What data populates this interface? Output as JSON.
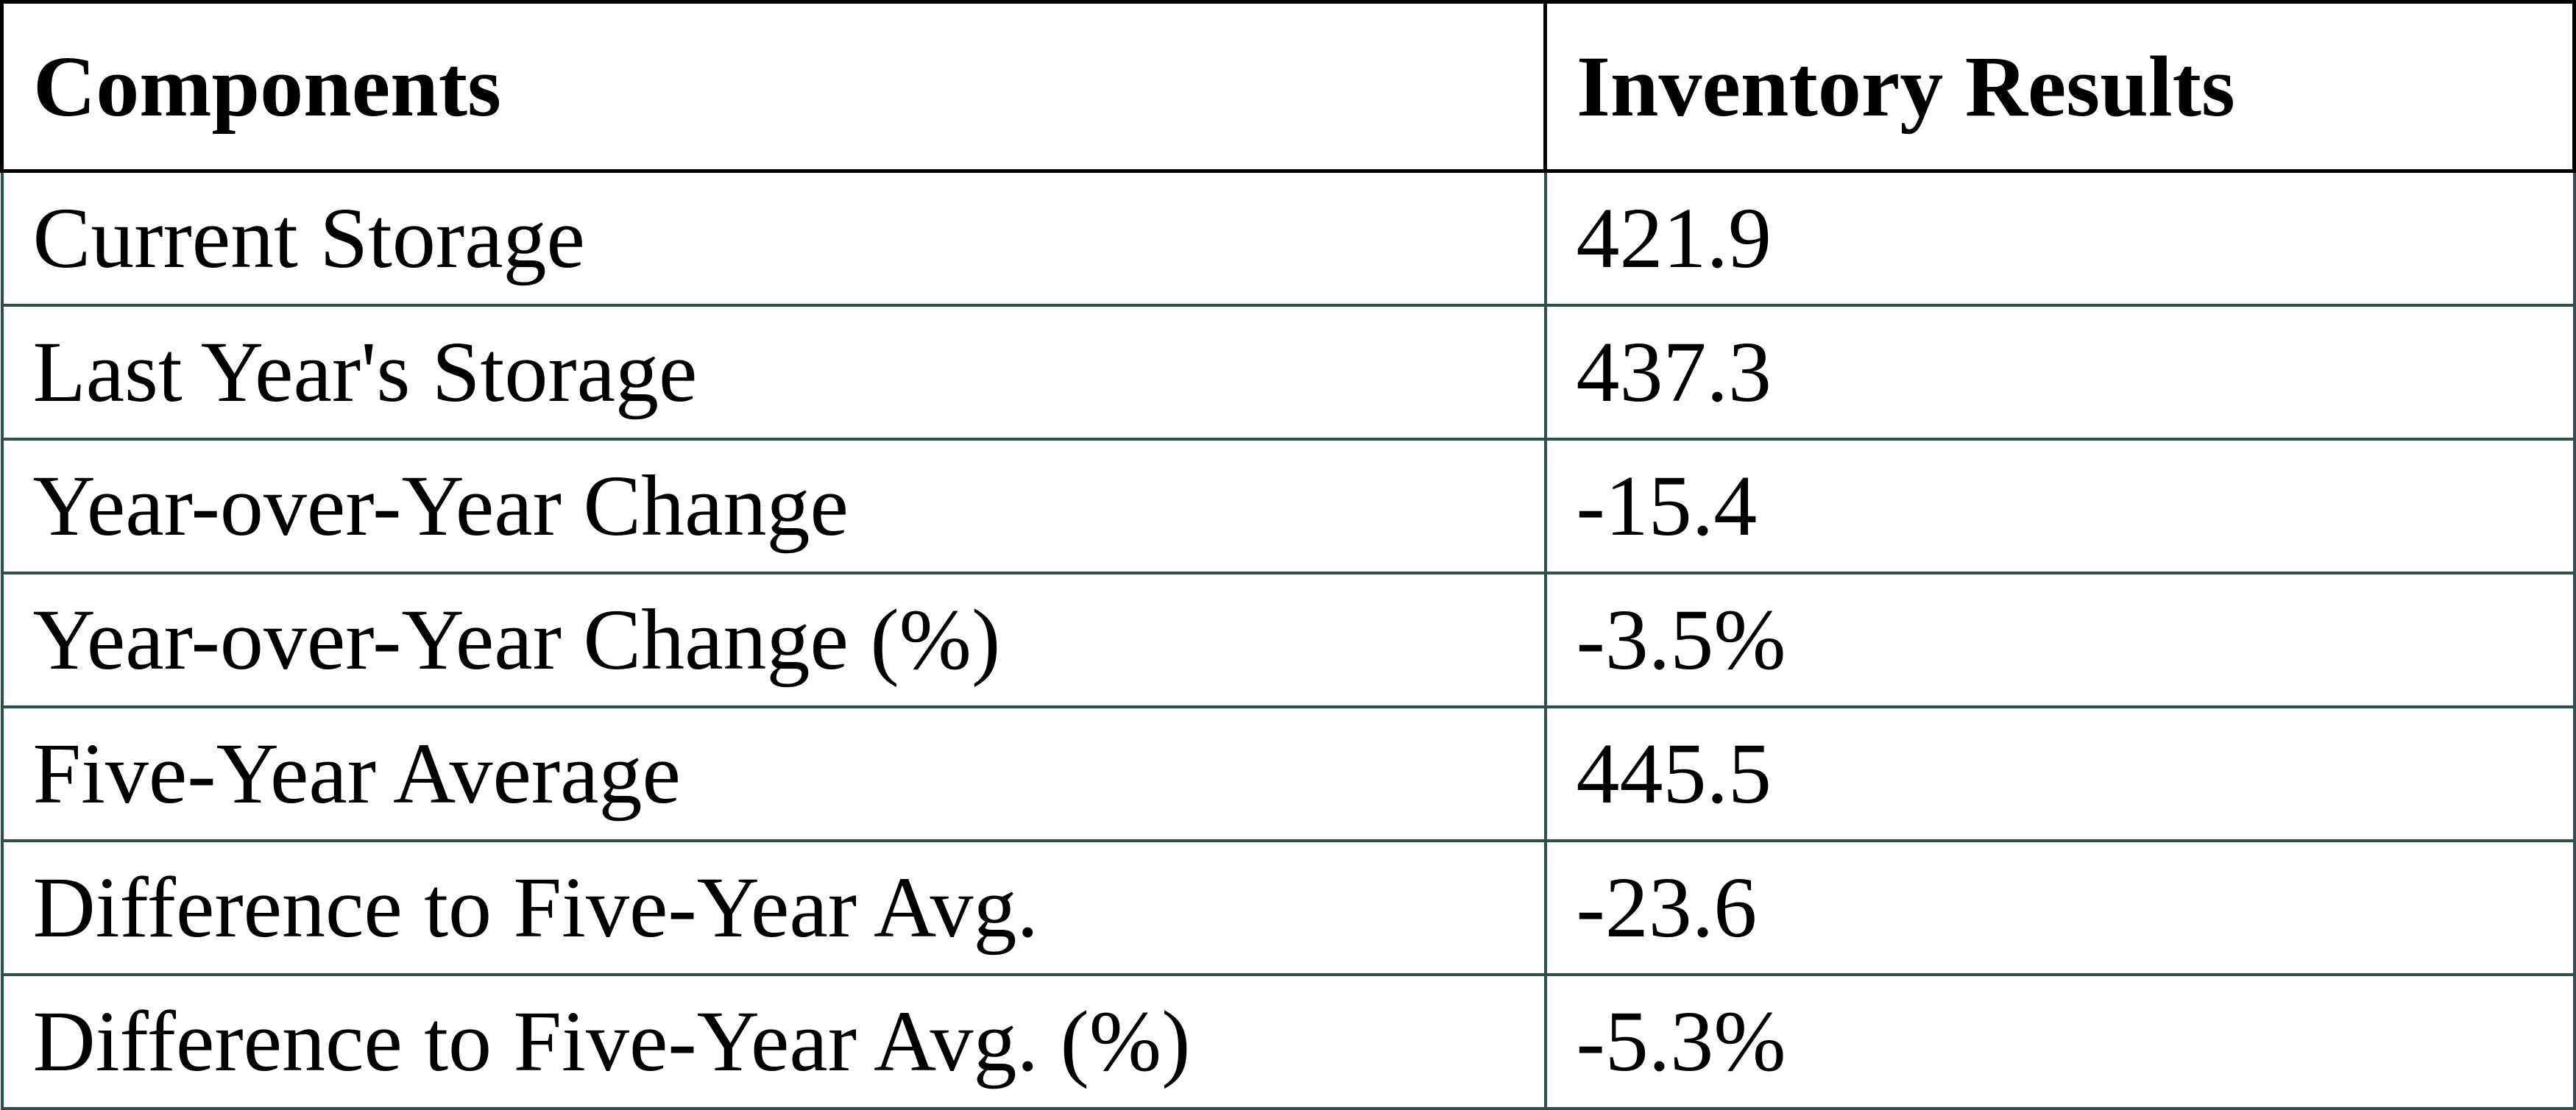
{
  "table": {
    "headers": [
      "Components",
      "Inventory Results"
    ],
    "rows": [
      [
        "Current Storage",
        "421.9"
      ],
      [
        "Last Year's Storage",
        "437.3"
      ],
      [
        "Year-over-Year Change",
        "-15.4"
      ],
      [
        "Year-over-Year Change (%)",
        "-3.5%"
      ],
      [
        "Five-Year Average",
        "445.5"
      ],
      [
        "Difference to Five-Year Avg.",
        "-23.6"
      ],
      [
        "Difference to Five-Year Avg. (%)",
        "-5.3%"
      ]
    ]
  },
  "colors": {
    "header_border": "#000000",
    "body_border": "#2f4f4f"
  }
}
